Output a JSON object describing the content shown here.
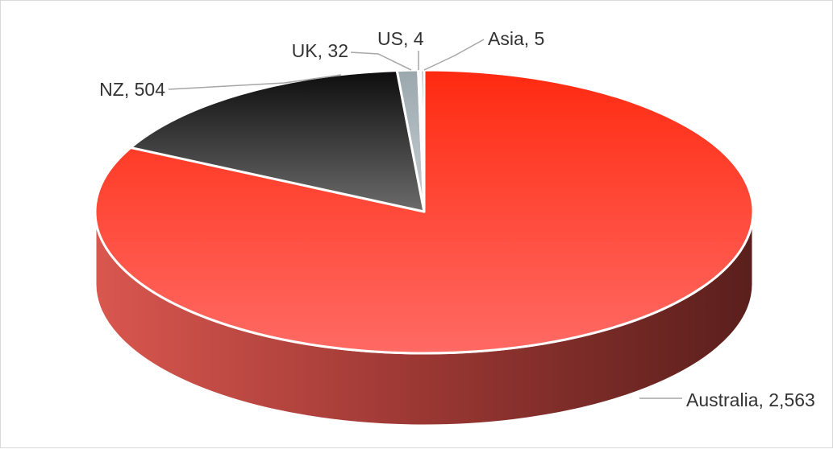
{
  "chart_data": {
    "type": "pie",
    "style": "3d",
    "grid": false,
    "legend": "none",
    "slices": [
      {
        "label": "Australia",
        "value": 2563,
        "value_text": "2,563",
        "color": "#ff3b2f"
      },
      {
        "label": "NZ",
        "value": 504,
        "value_text": "504",
        "color": "#3a3a3a"
      },
      {
        "label": "UK",
        "value": 32,
        "value_text": "32",
        "color": "#b7c3c9"
      },
      {
        "label": "US",
        "value": 4,
        "value_text": "4",
        "color": "#d6dadd"
      },
      {
        "label": "Asia",
        "value": 5,
        "value_text": "5",
        "color": "#9fa9ae"
      }
    ]
  }
}
